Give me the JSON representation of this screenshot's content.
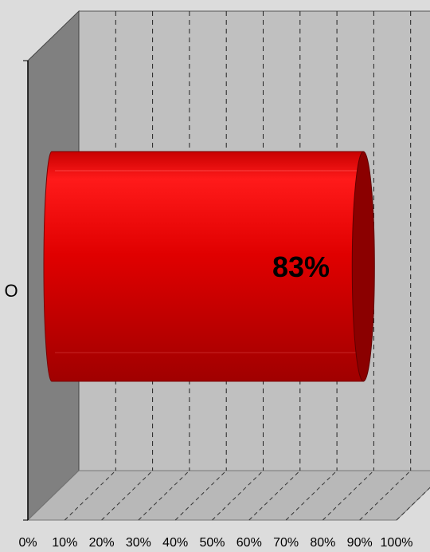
{
  "chart_data": {
    "type": "bar",
    "orientation": "horizontal",
    "style": "3d-cylinder",
    "categories": [
      "O"
    ],
    "values": [
      83
    ],
    "data_labels": [
      "83%"
    ],
    "xlim": [
      0,
      100
    ],
    "x_ticks": [
      "0%",
      "10%",
      "20%",
      "30%",
      "40%",
      "50%",
      "60%",
      "70%",
      "80%",
      "90%",
      "100%"
    ],
    "grid": true,
    "colors": {
      "bar": "#e00000",
      "bar_dark": "#8b0000",
      "wall": "#c0c0c0",
      "side_wall": "#808080",
      "floor": "#b8b8b8",
      "background": "#dcdcdc"
    }
  }
}
